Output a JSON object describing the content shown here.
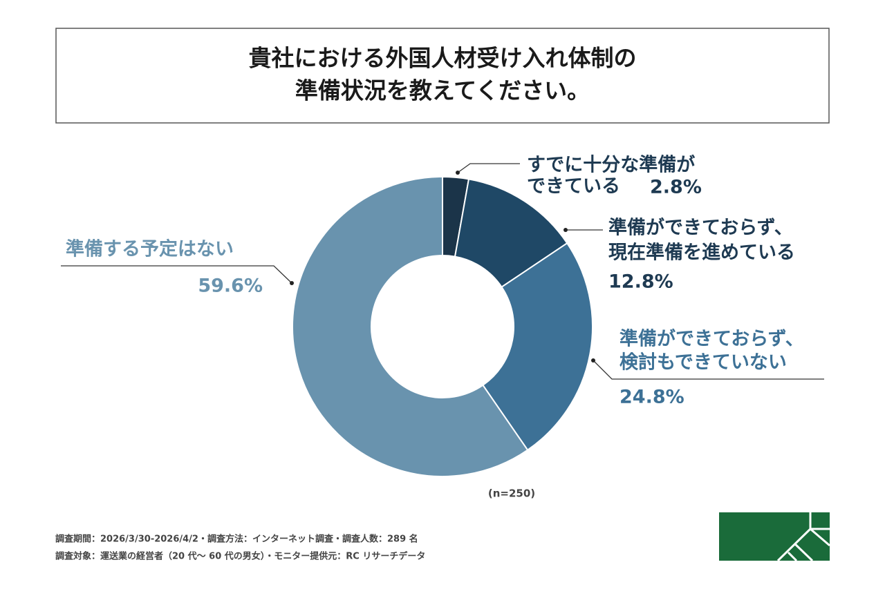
{
  "chart_data": {
    "type": "donut",
    "title": [
      "貴社における外国人材受け入れ体制の",
      "準備状況を教えてください。"
    ],
    "categories": [
      [
        "すでに十分な準備が",
        "できている"
      ],
      [
        "準備ができておらず、",
        "現在準備を進めている"
      ],
      [
        "準備ができておらず、",
        "検討もできていない"
      ],
      [
        "準備する予定はない"
      ]
    ],
    "values": [
      2.8,
      12.8,
      24.8,
      59.6
    ],
    "value_labels": [
      "2.8%",
      "12.8%",
      "24.8%",
      "59.6%"
    ],
    "colors": [
      "#1b3449",
      "#1f4866",
      "#3d7196",
      "#6993ae"
    ],
    "label_colors": [
      "#1e3a52",
      "#1e3a52",
      "#3d7196",
      "#6993ae"
    ],
    "note": "(n=250)",
    "footnotes": [
      "調査期間：2026/3/30-2026/4/2・調査方法：インターネット調査・調査人数：289 名",
      "調査対象：運送業の経営者（20 代～ 60 代の男女）・モニター提供元：RC リサーチデータ"
    ]
  }
}
